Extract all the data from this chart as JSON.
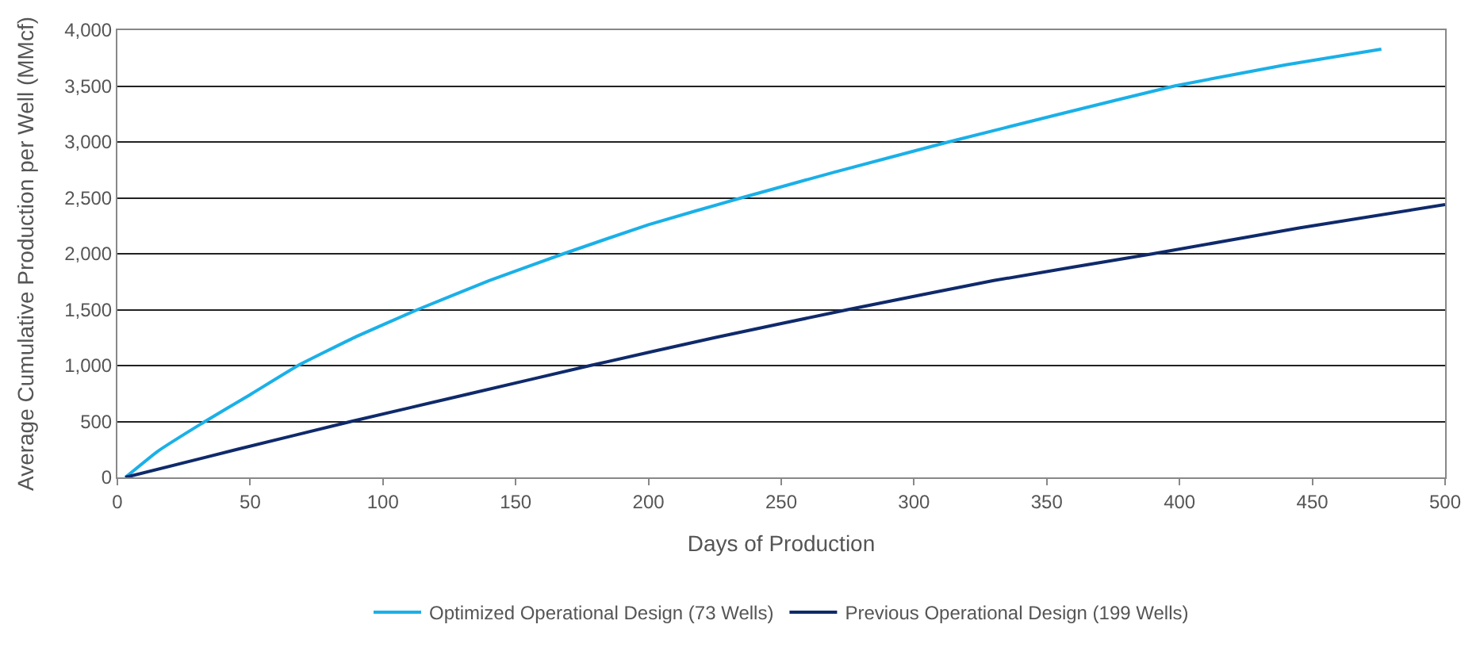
{
  "chart_data": {
    "type": "line",
    "xlabel": "Days of Production",
    "ylabel": "Average Cumulative Production per Well (MMcf)",
    "xlim": [
      0,
      500
    ],
    "xticks": [
      0,
      50,
      100,
      150,
      200,
      250,
      300,
      350,
      400,
      450,
      500
    ],
    "ylim": [
      0,
      4000
    ],
    "yticks": [
      {
        "value": 0,
        "label": "0"
      },
      {
        "value": 500,
        "label": "500"
      },
      {
        "value": 1000,
        "label": "1,000"
      },
      {
        "value": 1500,
        "label": "1,500"
      },
      {
        "value": 2000,
        "label": "2,000"
      },
      {
        "value": 2500,
        "label": "2,500"
      },
      {
        "value": 3000,
        "label": "3,000"
      },
      {
        "value": 3500,
        "label": "3,500"
      },
      {
        "value": 4000,
        "label": "4,000"
      }
    ],
    "grid": "y",
    "legend": "bottom",
    "marker": "none",
    "line_style": "solid",
    "series": [
      {
        "name": "Optimized Operational Design (73 Wells)",
        "color": "#1ab0e8",
        "x": [
          3,
          15,
          33,
          50,
          68,
          90,
          113,
          140,
          168,
          200,
          235,
          270,
          313,
          355,
          398,
          440,
          476
        ],
        "values": [
          0,
          230,
          500,
          740,
          1000,
          1260,
          1500,
          1760,
          2000,
          2260,
          2500,
          2730,
          3000,
          3250,
          3500,
          3690,
          3830
        ]
      },
      {
        "name": "Previous Operational Design (199 Wells)",
        "color": "#0f2a6b",
        "x": [
          3,
          45,
          88,
          133,
          178,
          225,
          275,
          330,
          390,
          445,
          500
        ],
        "values": [
          0,
          250,
          500,
          750,
          1000,
          1250,
          1500,
          1760,
          2000,
          2230,
          2440
        ]
      }
    ]
  }
}
